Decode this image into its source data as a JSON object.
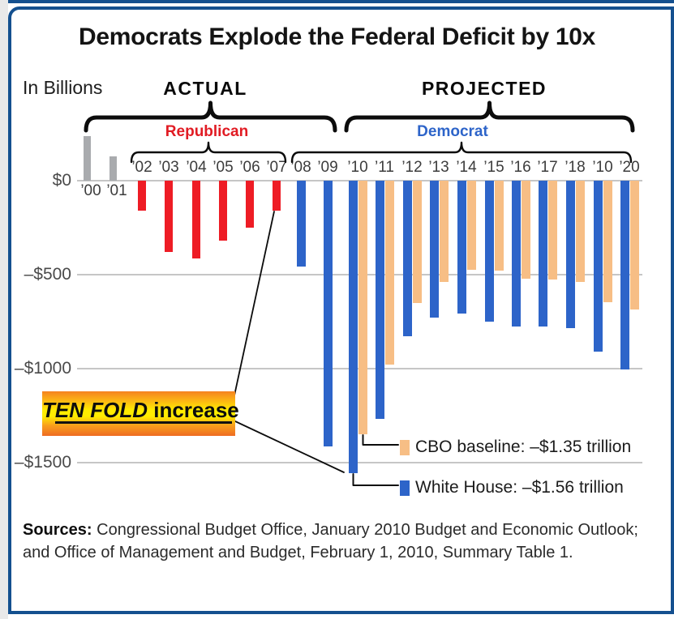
{
  "header": {
    "title": "Democrats Explode the Federal Deficit by 10x",
    "units_label": "In Billions",
    "actual_label": "ACTUAL",
    "projected_label": "PROJECTED",
    "republican_label": "Republican",
    "democrat_label": "Democrat"
  },
  "chart_data": {
    "type": "bar",
    "units": "billions of US dollars",
    "ylim": [
      -1700,
      300
    ],
    "grid": "horizontal gridlines at 0, -500, -1000, -1500",
    "y_tick_values": [
      0,
      -500,
      -1000,
      -1500
    ],
    "y_tick_labels": [
      "$0",
      "–$500",
      "–$1000",
      "–$1500"
    ],
    "series": [
      {
        "name": "surplus_actual",
        "color_key": "gray",
        "years": [
          "’00",
          "’01"
        ],
        "values": [
          236,
          128
        ]
      },
      {
        "name": "republican_actual_deficit",
        "color_key": "red",
        "years": [
          "’02",
          "’03",
          "’04",
          "’05",
          "’06",
          "’07"
        ],
        "values": [
          -158,
          -378,
          -413,
          -318,
          -248,
          -161
        ]
      },
      {
        "name": "democrat_actual_deficit",
        "color_key": "blue",
        "years": [
          "’08",
          "’09"
        ],
        "values": [
          -459,
          -1413
        ]
      },
      {
        "name": "white_house_projected",
        "color_key": "blue",
        "years": [
          "’10",
          "’11",
          "’12",
          "’13",
          "’14",
          "’15",
          "’16",
          "’17",
          "’18",
          "’10",
          "’20"
        ],
        "values": [
          -1556,
          -1267,
          -828,
          -727,
          -706,
          -752,
          -778,
          -778,
          -785,
          -908,
          -1003
        ]
      },
      {
        "name": "cbo_baseline_projected",
        "color_key": "tan",
        "years": [
          "’10",
          "’11",
          "’12",
          "’13",
          "’14",
          "’15",
          "’16",
          "’17",
          "’18",
          "’10",
          "’20"
        ],
        "values": [
          -1349,
          -980,
          -650,
          -539,
          -475,
          -480,
          -521,
          -525,
          -540,
          -648,
          -687
        ]
      }
    ]
  },
  "legend": {
    "cbo": {
      "label": "CBO baseline: –$1.35 trillion"
    },
    "white_house": {
      "label": "White House: –$1.56 trillion"
    }
  },
  "annotation": {
    "emphasis": "TEN FOLD",
    "rest": " increase"
  },
  "sources": {
    "label": "Sources:",
    "line1": " Congressional Budget Office, January 2010 Budget and Economic Outlook;",
    "line2": "and Office of Management and Budget, February 1, 2010, Summary Table 1."
  },
  "colors": {
    "red": "#ee1c25",
    "blue": "#2d64c9",
    "tan": "#f7be85",
    "gray": "#a9abae",
    "navy_border": "#14508f",
    "grid": "#c6c6c6",
    "republican_text": "#e11b23",
    "democrat_text": "#2d64c9"
  }
}
